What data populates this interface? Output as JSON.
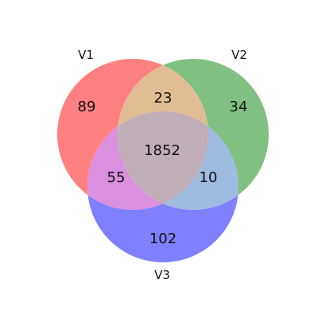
{
  "venn": {
    "type": "venn3",
    "sets": [
      {
        "name": "V1",
        "color": "#ff8080"
      },
      {
        "name": "V2",
        "color": "#80c080"
      },
      {
        "name": "V3",
        "color": "#8080ff"
      }
    ],
    "regions": {
      "only_v1": "89",
      "only_v2": "34",
      "only_v3": "102",
      "v1_v2": "23",
      "v1_v3": "55",
      "v2_v3": "10",
      "v1_v2_v3": "1852"
    },
    "colors": {
      "v1_v2": "#e0be92",
      "v1_v3": "#db8fdf",
      "v2_v3": "#9ebbe0",
      "v1_v2_v3": "#c0aeb8"
    }
  }
}
